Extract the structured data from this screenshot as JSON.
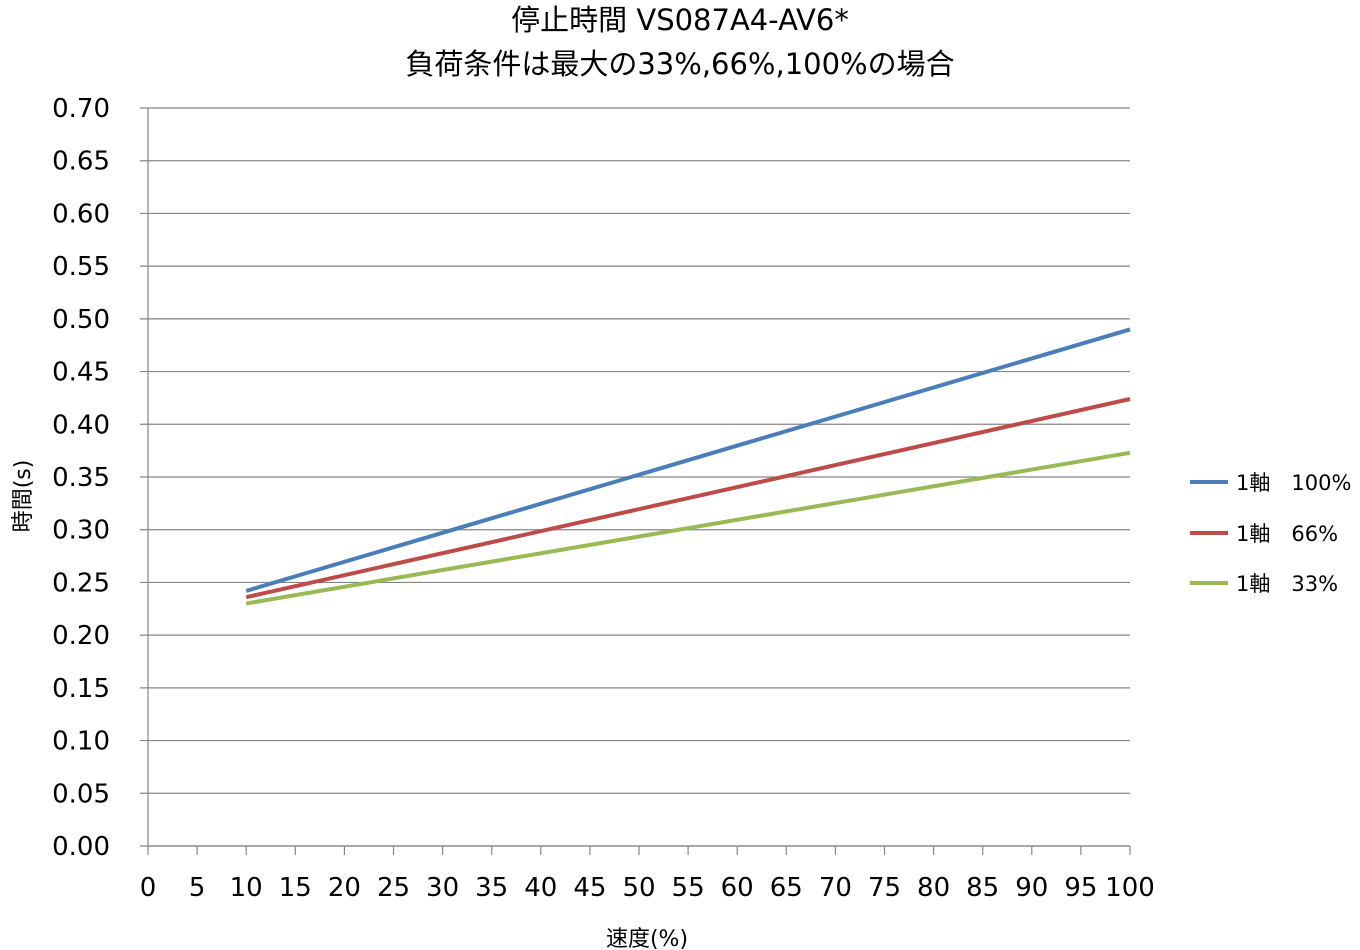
{
  "chart_data": {
    "type": "line",
    "title": "停止時間 VS087A4-AV6*",
    "subtitle": "負荷条件は最大の33%,66%,100%の場合",
    "xlabel": "速度(%)",
    "ylabel": "時間(s)",
    "xlim": [
      0,
      100
    ],
    "ylim": [
      0,
      0.7
    ],
    "x_ticks": [
      "0",
      "5",
      "10",
      "15",
      "20",
      "25",
      "30",
      "35",
      "40",
      "45",
      "50",
      "55",
      "60",
      "65",
      "70",
      "75",
      "80",
      "85",
      "90",
      "95",
      "100"
    ],
    "y_ticks": [
      "0.00",
      "0.05",
      "0.10",
      "0.15",
      "0.20",
      "0.25",
      "0.30",
      "0.35",
      "0.40",
      "0.45",
      "0.50",
      "0.55",
      "0.60",
      "0.65",
      "0.70"
    ],
    "grid": "horizontal",
    "legend_position": "right",
    "series": [
      {
        "name": "1軸　100%",
        "color": "#4a7ebb",
        "x": [
          10,
          100
        ],
        "y": [
          0.242,
          0.49
        ]
      },
      {
        "name": "1軸　66%",
        "color": "#be4b48",
        "x": [
          10,
          100
        ],
        "y": [
          0.236,
          0.424
        ]
      },
      {
        "name": "1軸　33%",
        "color": "#98b954",
        "x": [
          10,
          100
        ],
        "y": [
          0.23,
          0.373
        ]
      }
    ]
  }
}
